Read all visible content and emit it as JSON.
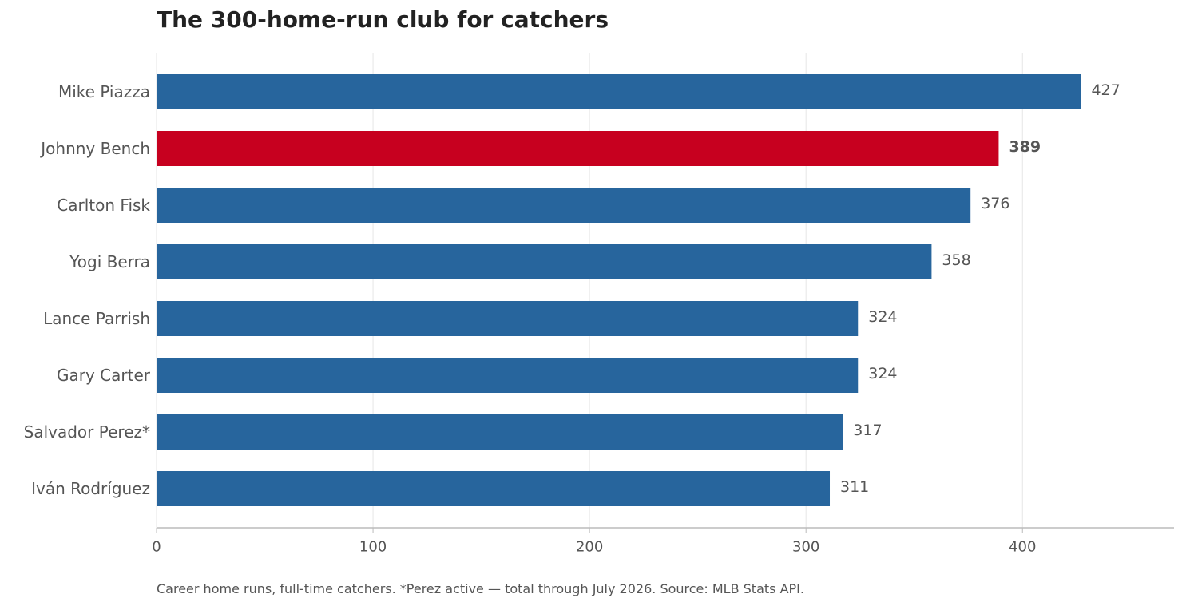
{
  "chart_data": {
    "type": "bar",
    "orientation": "horizontal",
    "title": "The 300-home-run club for catchers",
    "categories": [
      "Mike Piazza",
      "Johnny Bench",
      "Carlton Fisk",
      "Yogi Berra",
      "Lance Parrish",
      "Gary Carter",
      "Salvador Perez*",
      "Iván Rodríguez"
    ],
    "values": [
      427,
      389,
      376,
      358,
      324,
      324,
      317,
      311
    ],
    "value_labels": [
      "427",
      "389",
      "376",
      "358",
      "324",
      "324",
      "317",
      "311"
    ],
    "highlight": "Johnny Bench",
    "xlim": [
      0,
      470
    ],
    "xticks": [
      0,
      100,
      200,
      300,
      400
    ],
    "xtick_labels": [
      "0",
      "100",
      "200",
      "300",
      "400"
    ],
    "grid": "vertical",
    "colors": {
      "bar": "#27659d",
      "highlight": "#c7001f",
      "grid": "#e6e6e6",
      "axis": "#bbbbbb",
      "text": "#555555"
    },
    "note": "Career home runs, full-time catchers. *Perez active — total through July 2026. Source: MLB Stats API."
  }
}
